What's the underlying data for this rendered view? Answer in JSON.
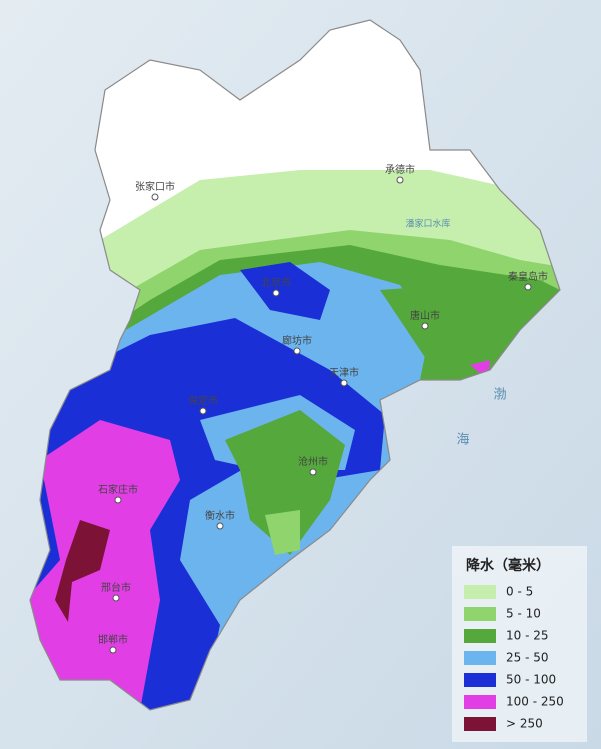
{
  "map": {
    "legend": {
      "title": "降水（毫米）",
      "items": [
        {
          "label": "0 - 5",
          "color": "#c6efae"
        },
        {
          "label": "5 - 10",
          "color": "#8fd46c"
        },
        {
          "label": "10 - 25",
          "color": "#55a83c"
        },
        {
          "label": "25 - 50",
          "color": "#6cb4ee"
        },
        {
          "label": "50 - 100",
          "color": "#1a2fd6"
        },
        {
          "label": "100 - 250",
          "color": "#e23ee6"
        },
        {
          "label": "> 250",
          "color": "#7c1235"
        }
      ]
    },
    "cities": [
      {
        "name": "张家口市"
      },
      {
        "name": "承德市"
      },
      {
        "name": "北京市"
      },
      {
        "name": "天津市"
      },
      {
        "name": "秦皇岛市"
      },
      {
        "name": "唐山市"
      },
      {
        "name": "廊坊市"
      },
      {
        "name": "保定市"
      },
      {
        "name": "沧州市"
      },
      {
        "name": "石家庄市"
      },
      {
        "name": "衡水市"
      },
      {
        "name": "邢台市"
      },
      {
        "name": "邯郸市"
      }
    ],
    "water": [
      {
        "name": "渤"
      },
      {
        "name": "海"
      },
      {
        "name": "潘家口水库"
      }
    ]
  }
}
